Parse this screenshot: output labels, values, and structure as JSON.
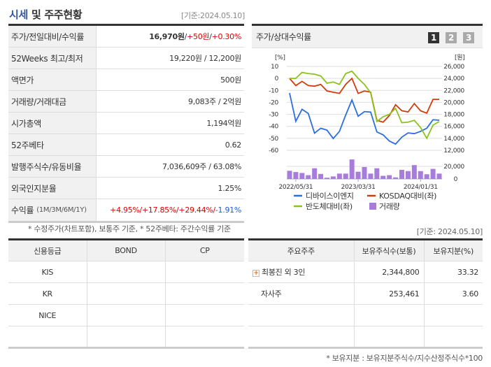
{
  "title": {
    "hl": "시세",
    "rest": " 및 주주현황"
  },
  "as_of": "[기준:2024.05.10]",
  "as_of2": "[기준: 2024.05.10]",
  "price_rows": [
    {
      "label": "주가/전일대비/수익률"
    },
    {
      "label": "52Weeks 최고/최저",
      "value": "19,220원 / 12,200원"
    },
    {
      "label": "액면가",
      "value": "500원"
    },
    {
      "label": "거래량/거래대금",
      "value": "9,083주 / 2억원"
    },
    {
      "label": "시가총액",
      "value": "1,194억원"
    },
    {
      "label": "52주베타",
      "value": "0.62"
    },
    {
      "label": "발행주식수/유동비율",
      "value": "7,036,609주 / 63.08%"
    },
    {
      "label": "외국인지분율",
      "value": "1.25%"
    },
    {
      "label": "수익률",
      "sub": "(1M/3M/6M/1Y)"
    }
  ],
  "price": {
    "close": "16,970원",
    "sep": " / ",
    "change": "+50원",
    "pct": "+0.30%"
  },
  "returns": {
    "m1": "+4.95%/",
    "m3": " +17.85%/",
    "m6": " +29.44%/",
    "y1": " -1.91%"
  },
  "note1": "* 수정주가(차트포함), 보통주 기준, * 52주베타: 주간수익률 기준",
  "chart_panel": {
    "title": "주가/상대수익률",
    "pages": [
      "1",
      "2",
      "3"
    ],
    "active_page": "1"
  },
  "chart_data": {
    "type": "line",
    "left_unit": "[%]",
    "right_unit": "[원]",
    "yticks_left": [
      10,
      0,
      -10,
      -20,
      -30,
      -40,
      -50,
      -60
    ],
    "yticks_right": [
      "26,000",
      "24,000",
      "22,000",
      "20,000",
      "18,000",
      "16,000",
      "14,000",
      "12,000"
    ],
    "ylim_left": [
      -60,
      10
    ],
    "vol_ticks": [
      "20,000",
      "0"
    ],
    "vol_lim": [
      0,
      20000
    ],
    "xticks": [
      {
        "i": 1,
        "label": "2022/05/31"
      },
      {
        "i": 11,
        "label": "2023/03/31"
      },
      {
        "i": 21,
        "label": "2024/01/31"
      }
    ],
    "series": [
      {
        "name": "디바이스이엔지",
        "color": "#2a6ee0",
        "values": [
          -12.2,
          -35.8,
          -25.8,
          -29.3,
          -45.7,
          -41.6,
          -43.2,
          -50.2,
          -44.2,
          -30.6,
          -18,
          -31.6,
          -27.7,
          -28.1,
          -44.7,
          -47.1,
          -52.3,
          -54.8,
          -49,
          -45.5,
          -46.1,
          -44.2,
          -41.6,
          -34.5,
          -34.9
        ]
      },
      {
        "name": "KOSDAQ대비(좌)",
        "color": "#d23c0a",
        "values": [
          0,
          -6,
          -2.5,
          -6,
          -6.5,
          -5,
          -10.5,
          -11.5,
          -12.5,
          -5,
          0,
          -12.5,
          -10.5,
          -11.5,
          -35,
          -36.5,
          -31,
          -22,
          -27,
          -28,
          -21,
          -27,
          -29,
          -17.5,
          -17.5
        ]
      },
      {
        "name": "반도체대비(좌)",
        "color": "#8cc21c",
        "values": [
          0,
          0,
          5,
          4,
          3.5,
          2,
          -4,
          -3,
          -5,
          4,
          6,
          0,
          -5,
          -12,
          -36,
          -32,
          -30,
          -25,
          -37,
          -36.5,
          -35,
          -41,
          -50,
          -39,
          -36
        ]
      }
    ],
    "volume": {
      "name": "거래량",
      "color": "#a77cdc",
      "values": [
        13000,
        11000,
        9500,
        6000,
        17000,
        8000,
        2000,
        4000,
        8500,
        8500,
        31000,
        11500,
        19000,
        8500,
        17000,
        5000,
        6000,
        2500,
        14500,
        12500,
        22000,
        12500,
        7500,
        16000,
        8500
      ]
    }
  },
  "credit": {
    "headers": [
      "신용등급",
      "BOND",
      "CP"
    ],
    "rows": [
      [
        "KIS",
        "",
        ""
      ],
      [
        "KR",
        "",
        ""
      ],
      [
        "NICE",
        "",
        ""
      ],
      [
        "",
        "",
        ""
      ]
    ]
  },
  "holders": {
    "headers": [
      "주요주주",
      "보유주식수(보통)",
      "보유지분(%)"
    ],
    "rows": [
      [
        "최봉진 외 3인",
        "2,344,800",
        "33.32"
      ],
      [
        "자사주",
        "253,461",
        "3.60"
      ],
      [
        "",
        "",
        ""
      ],
      [
        "",
        "",
        ""
      ]
    ]
  },
  "note2": "* 보유지분 : 보유지분주식수/지수산정주식수*100"
}
